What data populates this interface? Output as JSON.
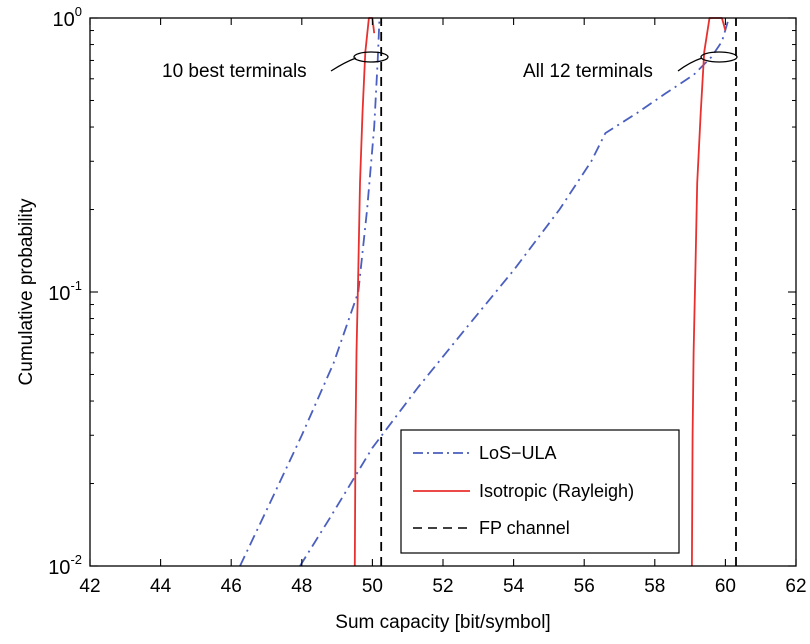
{
  "chart_data": {
    "type": "line",
    "xlabel": "Sum capacity [bit/symbol]",
    "ylabel": "Cumulative probability",
    "xlim": [
      42,
      62
    ],
    "ylim": [
      0.01,
      1
    ],
    "yscale": "log",
    "x_ticks": [
      "42",
      "44",
      "46",
      "48",
      "50",
      "52",
      "54",
      "56",
      "58",
      "60",
      "62"
    ],
    "y_ticks": [
      {
        "base": "10",
        "exp": "-2",
        "value": 0.01
      },
      {
        "base": "10",
        "exp": "-1",
        "value": 0.1
      },
      {
        "base": "10",
        "exp": "0",
        "value": 1
      }
    ],
    "grid": false,
    "legend_position": "bottom-right",
    "annotations": [
      {
        "text": "10 best terminals"
      },
      {
        "text": "All 12 terminals"
      }
    ],
    "series": [
      {
        "name": "LoS−ULA",
        "style": "dashdot",
        "color": "#4a5fbf",
        "groups": [
          {
            "x": [
              46.25,
              47.1,
              48.0,
              48.9,
              49.6,
              49.85,
              50.05,
              50.15,
              50.2
            ],
            "y": [
              0.01,
              0.017,
              0.03,
              0.055,
              0.1,
              0.2,
              0.4,
              0.7,
              1.0
            ]
          },
          {
            "x": [
              47.95,
              48.8,
              50.0,
              51.3,
              52.7,
              54.0,
              55.3,
              56.2,
              56.6,
              57.5,
              58.3,
              59.1,
              59.6,
              59.9,
              60.1
            ],
            "y": [
              0.01,
              0.015,
              0.027,
              0.045,
              0.075,
              0.12,
              0.2,
              0.3,
              0.38,
              0.45,
              0.53,
              0.62,
              0.72,
              0.82,
              1.0
            ]
          }
        ]
      },
      {
        "name": "Isotropic (Rayleigh)",
        "style": "solid",
        "color": "#e8312f",
        "groups": [
          {
            "x": [
              49.5,
              49.52,
              49.55,
              49.6,
              49.65,
              49.72,
              49.8,
              49.9,
              50.0,
              50.05
            ],
            "y": [
              0.01,
              0.03,
              0.06,
              0.12,
              0.25,
              0.45,
              0.75,
              1.0,
              1.0,
              0.88
            ]
          },
          {
            "x": [
              59.05,
              59.07,
              59.1,
              59.15,
              59.2,
              59.3,
              59.4,
              59.55,
              59.75,
              59.9,
              60.0
            ],
            "y": [
              0.01,
              0.03,
              0.06,
              0.12,
              0.25,
              0.45,
              0.75,
              1.0,
              1.0,
              1.0,
              0.9
            ]
          }
        ]
      },
      {
        "name": "FP channel",
        "style": "dashed",
        "color": "#000000",
        "groups": [
          {
            "x": [
              50.25,
              50.25
            ],
            "y": [
              0.01,
              1.0
            ]
          },
          {
            "x": [
              60.3,
              60.3
            ],
            "y": [
              0.01,
              1.0
            ]
          }
        ]
      }
    ]
  }
}
